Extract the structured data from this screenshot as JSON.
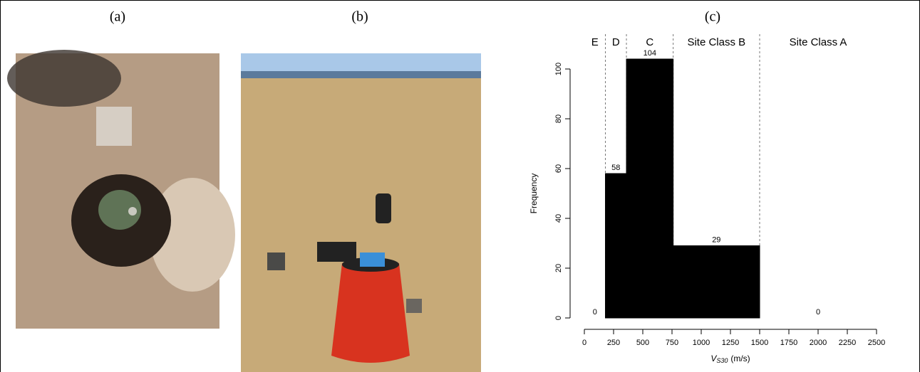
{
  "panels": {
    "a": {
      "label": "(a)"
    },
    "b": {
      "label": "(b)"
    },
    "c": {
      "label": "(c)"
    }
  },
  "chart_data": {
    "type": "histogram",
    "bins": [
      0,
      180,
      360,
      760,
      1500,
      2500
    ],
    "values": [
      0,
      58,
      104,
      29,
      0
    ],
    "class_labels": [
      "E",
      "D",
      "C",
      "Site Class B",
      "Site Class A"
    ],
    "color": "#000000",
    "xlim": [
      0,
      2500
    ],
    "xticks": [
      0,
      250,
      500,
      750,
      1000,
      1250,
      1500,
      1750,
      2000,
      2250,
      2500
    ],
    "ylim": [
      0,
      110
    ],
    "yticks": [
      0,
      20,
      40,
      60,
      80,
      100
    ],
    "y_label": "Frequency",
    "x_label": {
      "symbol": "V",
      "subscript": "S30",
      "unit": "(m/s)"
    }
  }
}
